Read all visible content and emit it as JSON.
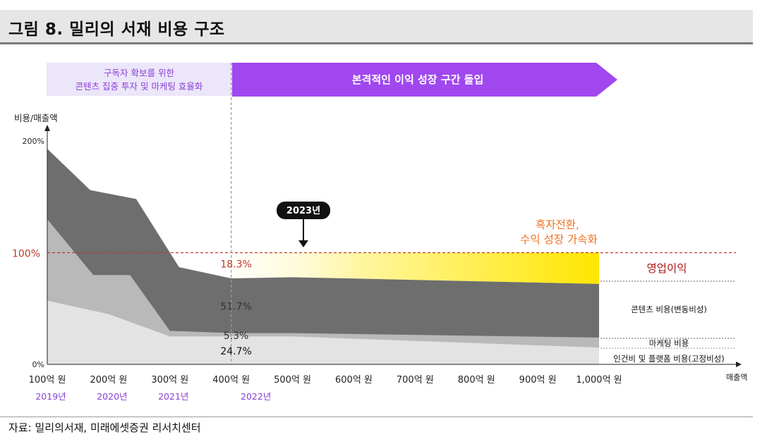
{
  "header": {
    "title": "그림 8. 밀리의 서재 비용 구조"
  },
  "banner": {
    "left_line1": "구독자 확보를 위한",
    "left_line2": "콘텐츠 집중 투자 및 마케팅 효율화",
    "right": "본격적인 이익 성장 구간 돌입"
  },
  "chart_data": {
    "type": "area",
    "ylabel": "비용/매출액",
    "xlabel": "매출액",
    "y_ticks": [
      "200%",
      "100%",
      "0%"
    ],
    "ylim": [
      0,
      200
    ],
    "x_ticks": [
      "100억 원",
      "200억 원",
      "300억 원",
      "400억 원",
      "500억 원",
      "600억 원",
      "700억 원",
      "800억 원",
      "900억 원",
      "1,000억 원"
    ],
    "x_values": [
      100,
      200,
      300,
      400,
      500,
      600,
      700,
      800,
      900,
      1000
    ],
    "xlim": [
      100,
      1000
    ],
    "year_labels": [
      {
        "x": 100,
        "label": "2019년"
      },
      {
        "x": 200,
        "label": "2020년"
      },
      {
        "x": 300,
        "label": "2021년"
      },
      {
        "x": 400,
        "label": "2022년"
      }
    ],
    "reference_line": {
      "y": 100,
      "label": "100%",
      "color": "#c0392b"
    },
    "series": [
      {
        "name": "인건비 및 플랫폼 비용(고정비성)",
        "color": "#e3e3e3",
        "points": [
          [
            100,
            57
          ],
          [
            200,
            45
          ],
          [
            300,
            25
          ],
          [
            400,
            25
          ],
          [
            500,
            25
          ],
          [
            1000,
            15
          ]
        ]
      },
      {
        "name": "마케팅 비용",
        "color": "#b9b9b9",
        "points": [
          [
            100,
            130
          ],
          [
            175,
            80
          ],
          [
            235,
            80
          ],
          [
            300,
            30
          ],
          [
            400,
            28
          ],
          [
            500,
            28
          ],
          [
            1000,
            24
          ]
        ]
      },
      {
        "name": "콘텐츠 비용(변동비성)",
        "color": "#6e6e6e",
        "points": [
          [
            100,
            193
          ],
          [
            170,
            156
          ],
          [
            245,
            148
          ],
          [
            315,
            87
          ],
          [
            400,
            77
          ],
          [
            500,
            78
          ],
          [
            1000,
            72
          ]
        ]
      },
      {
        "name": "영업이익",
        "color": "#fff23a",
        "points": [
          [
            400,
            100
          ],
          [
            1000,
            100
          ]
        ]
      }
    ],
    "data_labels": [
      {
        "x": 500,
        "y": 90,
        "label": "18.3%",
        "color": "#c0392b"
      },
      {
        "x": 500,
        "y": 52,
        "label": "51.7%",
        "color": "#333333"
      },
      {
        "x": 500,
        "y": 26,
        "label": "5.3%",
        "color": "#333333"
      },
      {
        "x": 500,
        "y": 12,
        "label": "24.7%",
        "color": "#111111"
      }
    ],
    "legend": {
      "profit": "영업이익",
      "content": "콘텐츠 비용(변동비성)",
      "marketing": "마케팅 비용",
      "fixed": "인건비 및 플랫폼 비용(고정비성)"
    },
    "annotations": {
      "callout_year": "2023년",
      "turnaround_line1": "흑자전환,",
      "turnaround_line2": "수익 성장 가속화"
    },
    "colors": {
      "banner_left": "#ece6fa",
      "banner_right": "#a047f0",
      "year_label": "#8b3fd6",
      "turnaround": "#f07020"
    }
  },
  "source": "자료: 밀리의서재, 미래에셋증권 리서치센터"
}
